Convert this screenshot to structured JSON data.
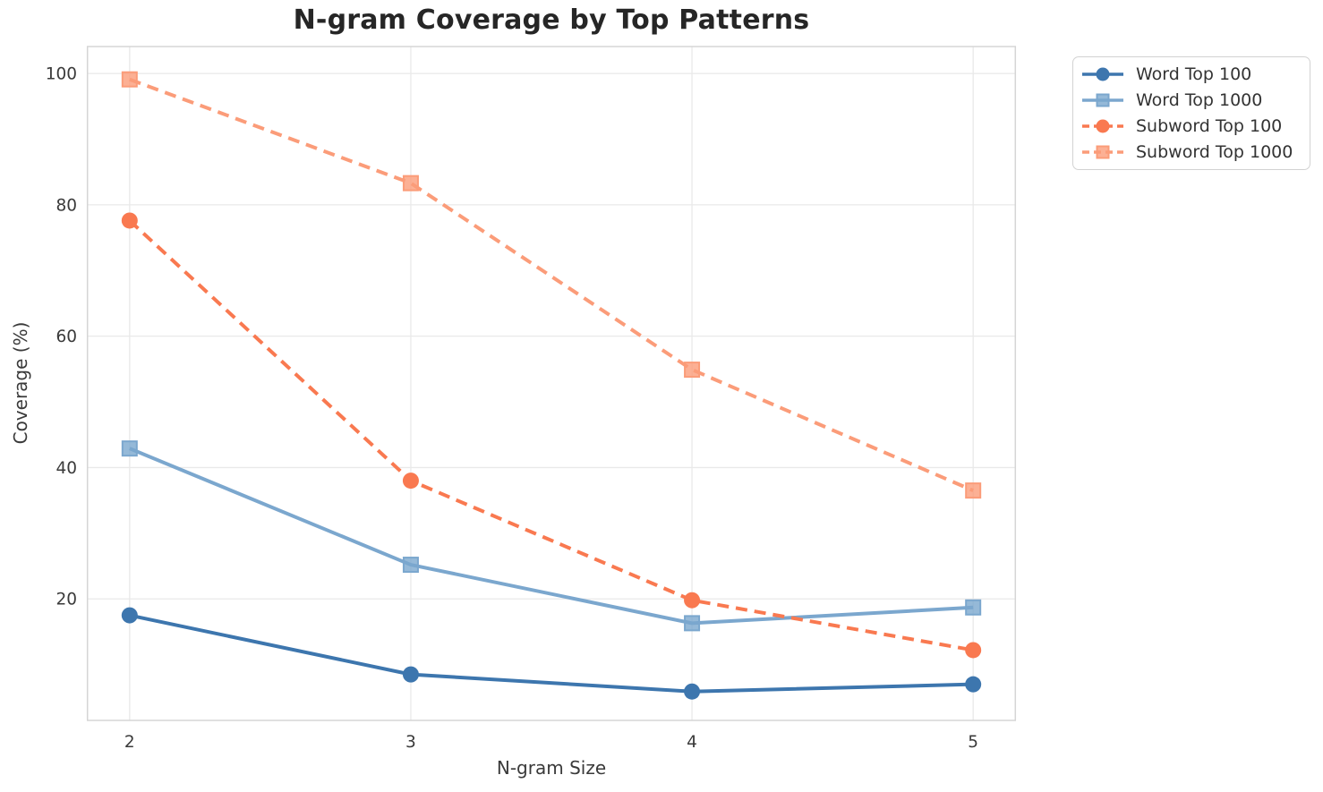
{
  "chart_data": {
    "type": "line",
    "title": "N-gram Coverage by Top Patterns",
    "xlabel": "N-gram Size",
    "ylabel": "Coverage (%)",
    "x": [
      2,
      3,
      4,
      5
    ],
    "xticks": [
      2,
      3,
      4,
      5
    ],
    "yticks": [
      20,
      40,
      60,
      80,
      100
    ],
    "xlim": [
      1.85,
      5.15
    ],
    "ylim": [
      1.5,
      104.1
    ],
    "grid": true,
    "legend_position": "outside-upper-right",
    "series": [
      {
        "name": "Word Top 100",
        "values": [
          17.5,
          8.5,
          5.9,
          7.0
        ],
        "color": "#3d76ae",
        "marker": "circle",
        "line": "solid"
      },
      {
        "name": "Word Top 1000",
        "values": [
          42.9,
          25.2,
          16.3,
          18.7
        ],
        "color": "#7ba7ce",
        "marker": "square",
        "line": "solid"
      },
      {
        "name": "Subword Top 100",
        "values": [
          77.6,
          38.0,
          19.8,
          12.2
        ],
        "color": "#f97950",
        "marker": "circle",
        "line": "dashed"
      },
      {
        "name": "Subword Top 1000",
        "values": [
          99.1,
          83.3,
          54.9,
          36.5
        ],
        "color": "#fb9c79",
        "marker": "square",
        "line": "dashed"
      }
    ]
  },
  "palette": {
    "grid_color": "#e9e9e9",
    "spine_color": "#d5d5d5",
    "tick_text_color": "#3a3a3a",
    "title_color": "#262626",
    "legend_text_color": "#333333",
    "background": "#ffffff"
  }
}
